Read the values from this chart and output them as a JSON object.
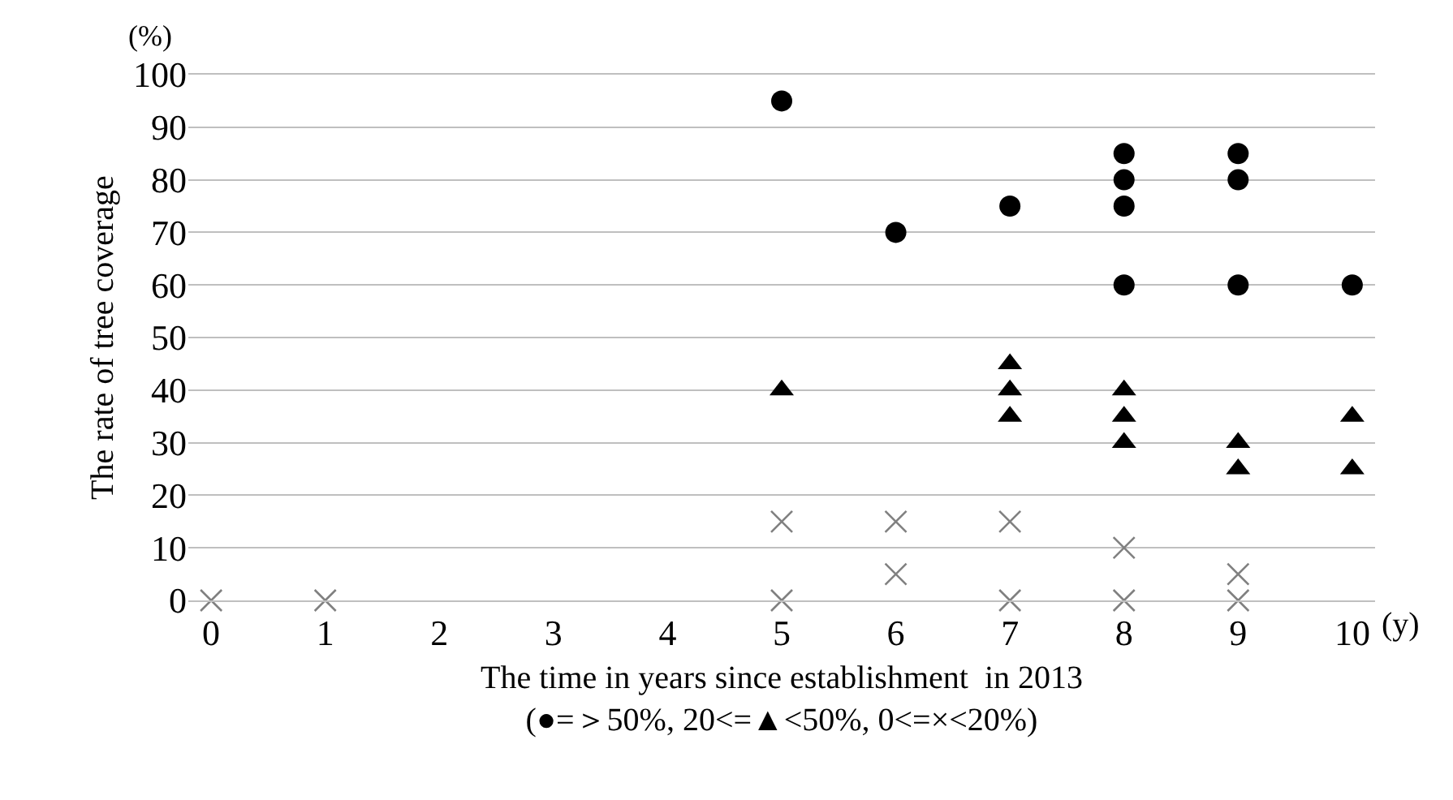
{
  "chart_data": {
    "type": "scatter",
    "xlabel": "The time in years since establishment  in 2013\n(●=＞50%, 20<=▲<50%, 0<=×<20%)",
    "ylabel": "The rate of tree coverage",
    "annotations": [
      "(%)",
      "(y)"
    ],
    "xlim": [
      -0.2,
      10.2
    ],
    "xticks": [
      0,
      1,
      2,
      3,
      4,
      5,
      6,
      7,
      8,
      9,
      10
    ],
    "ylim": [
      0,
      100
    ],
    "yticks": [
      0,
      10,
      20,
      30,
      40,
      50,
      60,
      70,
      80,
      90,
      100
    ],
    "grid": "y",
    "series": [
      {
        "color": "#000000",
        "marker": "circle",
        "x": [
          5,
          6,
          7,
          8,
          8,
          8,
          8,
          9,
          9,
          9,
          10
        ],
        "values": [
          95,
          70,
          75,
          85,
          80,
          75,
          60,
          85,
          80,
          60,
          60
        ]
      },
      {
        "color": "#000000",
        "marker": "triangle",
        "x": [
          5,
          7,
          7,
          7,
          8,
          8,
          8,
          9,
          9,
          10,
          10
        ],
        "values": [
          40,
          45,
          40,
          35,
          40,
          35,
          30,
          30,
          25,
          35,
          25
        ]
      },
      {
        "color": "#808080",
        "marker": "cross",
        "x": [
          0,
          1,
          5,
          5,
          6,
          6,
          7,
          7,
          8,
          8,
          9,
          9
        ],
        "values": [
          0,
          0,
          15,
          0,
          15,
          5,
          15,
          0,
          10,
          0,
          5,
          0
        ]
      }
    ]
  }
}
